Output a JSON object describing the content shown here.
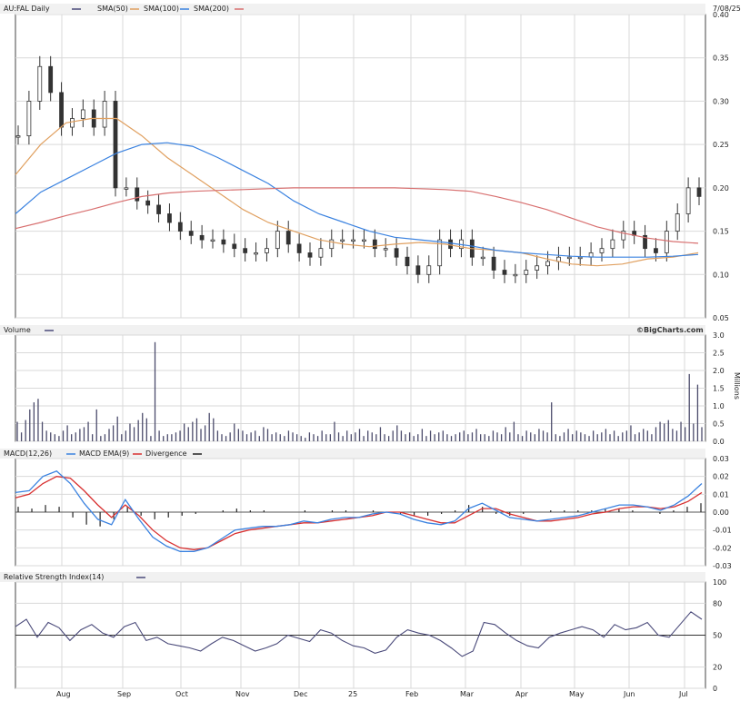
{
  "header": {
    "symbol_label": "AU:FAL Daily",
    "sma50_label": "SMA(50)",
    "sma100_label": "SMA(100)",
    "sma200_label": "SMA(200)",
    "date": "7/08/25",
    "watermark": "©BigCharts.com"
  },
  "colors": {
    "sma50": "#e0a060",
    "sma100": "#3a82e0",
    "sma200": "#d87070",
    "macd": "#3a82e0",
    "macd_ema": "#d83030",
    "divergence": "#222222",
    "volume": "#4b4b6b",
    "rsi": "#4a4a7a"
  },
  "chart_data": [
    {
      "type": "candlestick",
      "title": "AU:FAL Daily",
      "yticks": [
        "0.40",
        "0.35",
        "0.30",
        "0.25",
        "0.20",
        "0.15",
        "0.10",
        "0.05"
      ],
      "ylim": [
        0.05,
        0.4
      ],
      "xticks": [
        "Aug",
        "Sep",
        "Oct",
        "Nov",
        "Dec",
        "25",
        "Feb",
        "Mar",
        "Apr",
        "May",
        "Jun",
        "Jul"
      ],
      "grid": true,
      "series": [
        {
          "name": "SMA(50)",
          "values": [
            0.215,
            0.25,
            0.275,
            0.28,
            0.28,
            0.26,
            0.235,
            0.215,
            0.195,
            0.175,
            0.16,
            0.15,
            0.14,
            0.135,
            0.132,
            0.135,
            0.137,
            0.135,
            0.13,
            0.128,
            0.125,
            0.118,
            0.112,
            0.11,
            0.112,
            0.118,
            0.12,
            0.125
          ]
        },
        {
          "name": "SMA(100)",
          "values": [
            0.17,
            0.195,
            0.21,
            0.225,
            0.24,
            0.25,
            0.252,
            0.248,
            0.235,
            0.22,
            0.205,
            0.185,
            0.17,
            0.16,
            0.15,
            0.143,
            0.14,
            0.137,
            0.133,
            0.128,
            0.125,
            0.123,
            0.121,
            0.12,
            0.12,
            0.12,
            0.121,
            0.123
          ]
        },
        {
          "name": "SMA(200)",
          "values": [
            0.153,
            0.16,
            0.168,
            0.175,
            0.183,
            0.19,
            0.194,
            0.196,
            0.197,
            0.198,
            0.199,
            0.2,
            0.2,
            0.2,
            0.2,
            0.2,
            0.199,
            0.198,
            0.196,
            0.19,
            0.183,
            0.175,
            0.165,
            0.155,
            0.148,
            0.142,
            0.138,
            0.136
          ]
        },
        {
          "name": "Close",
          "values": [
            0.26,
            0.3,
            0.34,
            0.31,
            0.27,
            0.28,
            0.29,
            0.27,
            0.3,
            0.2,
            0.2,
            0.185,
            0.18,
            0.17,
            0.16,
            0.15,
            0.145,
            0.14,
            0.14,
            0.135,
            0.13,
            0.125,
            0.125,
            0.13,
            0.15,
            0.135,
            0.125,
            0.12,
            0.13,
            0.14,
            0.14,
            0.14,
            0.14,
            0.13,
            0.13,
            0.12,
            0.11,
            0.1,
            0.11,
            0.14,
            0.13,
            0.14,
            0.12,
            0.12,
            0.105,
            0.1,
            0.1,
            0.105,
            0.11,
            0.115,
            0.12,
            0.12,
            0.12,
            0.125,
            0.13,
            0.14,
            0.15,
            0.145,
            0.13,
            0.125,
            0.15,
            0.17,
            0.2,
            0.19
          ]
        }
      ]
    },
    {
      "type": "bar",
      "title": "Volume",
      "yticks": [
        "3.0",
        "2.5",
        "2.0",
        "1.5",
        "1.0",
        "0.5",
        "0.0"
      ],
      "ylim": [
        0,
        3.0
      ],
      "ylabel": "Millions",
      "values": [
        0.55,
        0.25,
        0.6,
        0.9,
        1.1,
        1.2,
        0.55,
        0.3,
        0.25,
        0.2,
        0.15,
        0.3,
        0.45,
        0.2,
        0.25,
        0.35,
        0.4,
        0.55,
        0.2,
        0.9,
        0.15,
        0.2,
        0.35,
        0.45,
        0.7,
        0.2,
        0.3,
        0.5,
        0.4,
        0.6,
        0.8,
        0.65,
        0.15,
        2.8,
        0.3,
        0.15,
        0.2,
        0.2,
        0.25,
        0.3,
        0.5,
        0.4,
        0.55,
        0.65,
        0.35,
        0.45,
        0.8,
        0.65,
        0.3,
        0.2,
        0.15,
        0.25,
        0.5,
        0.35,
        0.3,
        0.2,
        0.25,
        0.3,
        0.15,
        0.4,
        0.35,
        0.2,
        0.25,
        0.2,
        0.15,
        0.3,
        0.25,
        0.2,
        0.15,
        0.1,
        0.25,
        0.2,
        0.15,
        0.3,
        0.2,
        0.2,
        0.55,
        0.25,
        0.15,
        0.3,
        0.2,
        0.25,
        0.35,
        0.15,
        0.3,
        0.25,
        0.2,
        0.4,
        0.2,
        0.15,
        0.3,
        0.45,
        0.3,
        0.2,
        0.25,
        0.15,
        0.2,
        0.35,
        0.15,
        0.3,
        0.2,
        0.25,
        0.3,
        0.2,
        0.15,
        0.2,
        0.25,
        0.3,
        0.2,
        0.25,
        0.35,
        0.2,
        0.2,
        0.15,
        0.3,
        0.25,
        0.2,
        0.4,
        0.25,
        0.55,
        0.2,
        0.15,
        0.3,
        0.25,
        0.2,
        0.35,
        0.3,
        0.25,
        1.1,
        0.2,
        0.15,
        0.25,
        0.35,
        0.2,
        0.3,
        0.25,
        0.2,
        0.15,
        0.3,
        0.2,
        0.25,
        0.35,
        0.2,
        0.3,
        0.15,
        0.25,
        0.3,
        0.45,
        0.2,
        0.25,
        0.35,
        0.3,
        0.2,
        0.4,
        0.55,
        0.5,
        0.6,
        0.35,
        0.3,
        0.55,
        0.4,
        1.9,
        0.5,
        1.6,
        0.4
      ]
    },
    {
      "type": "line",
      "title": "MACD(12,26)",
      "yticks": [
        "0.03",
        "0.02",
        "0.01",
        "0.00",
        "-0.01",
        "-0.02",
        "-0.03"
      ],
      "ylim": [
        -0.03,
        0.03
      ],
      "series": [
        {
          "name": "MACD EMA(9)",
          "values": [
            0.008,
            0.01,
            0.016,
            0.02,
            0.019,
            0.012,
            0.004,
            -0.003,
            0.004,
            -0.002,
            -0.01,
            -0.016,
            -0.02,
            -0.021,
            -0.02,
            -0.016,
            -0.012,
            -0.01,
            -0.009,
            -0.008,
            -0.007,
            -0.006,
            -0.006,
            -0.005,
            -0.004,
            -0.003,
            -0.002,
            0.0,
            0.0,
            -0.002,
            -0.004,
            -0.006,
            -0.006,
            -0.002,
            0.002,
            0.002,
            -0.001,
            -0.003,
            -0.005,
            -0.005,
            -0.004,
            -0.003,
            -0.001,
            0.0,
            0.002,
            0.003,
            0.003,
            0.002,
            0.003,
            0.006,
            0.011
          ]
        },
        {
          "name": "Divergence",
          "values": [
            0.003,
            0.002,
            0.004,
            0.003,
            -0.003,
            -0.007,
            -0.008,
            -0.004,
            0.003,
            -0.002,
            -0.004,
            -0.003,
            -0.002,
            -0.001,
            0.0,
            0.001,
            0.002,
            0.001,
            0.001,
            0.0,
            0.0,
            0.001,
            0.0,
            0.001,
            0.001,
            0.0,
            0.001,
            0.0,
            -0.001,
            -0.002,
            -0.002,
            -0.001,
            0.001,
            0.004,
            0.003,
            -0.001,
            -0.002,
            -0.001,
            0.0,
            0.001,
            0.001,
            0.001,
            0.001,
            0.002,
            0.002,
            0.001,
            0.0,
            -0.001,
            0.001,
            0.003,
            0.005
          ]
        }
      ]
    },
    {
      "type": "line",
      "title": "Relative Strength Index(14)",
      "yticks": [
        "100",
        "80",
        "50",
        "20",
        "0"
      ],
      "ylim": [
        0,
        100
      ],
      "values": [
        58,
        65,
        48,
        62,
        57,
        45,
        55,
        60,
        52,
        48,
        58,
        62,
        45,
        48,
        42,
        40,
        38,
        35,
        42,
        48,
        45,
        40,
        35,
        38,
        42,
        50,
        47,
        44,
        55,
        52,
        45,
        40,
        38,
        33,
        36,
        48,
        55,
        52,
        50,
        45,
        38,
        30,
        35,
        62,
        60,
        52,
        45,
        40,
        38,
        48,
        52,
        55,
        58,
        55,
        48,
        60,
        55,
        57,
        62,
        50,
        48,
        60,
        72,
        65
      ]
    }
  ]
}
